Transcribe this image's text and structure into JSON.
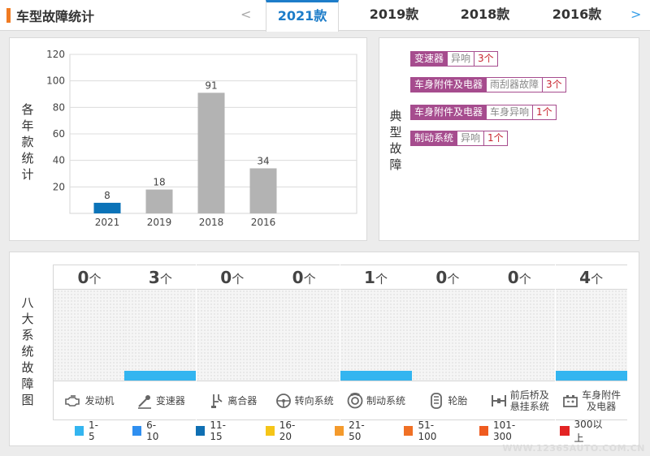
{
  "header": {
    "title": "车型故障统计",
    "prev_arrow": "<",
    "next_arrow": ">",
    "tabs": [
      {
        "label": "2021款",
        "active": true
      },
      {
        "label": "2019款",
        "active": false
      },
      {
        "label": "2018款",
        "active": false
      },
      {
        "label": "2016款",
        "active": false
      }
    ]
  },
  "yearly": {
    "side_label": "各年款统计",
    "chart_data": {
      "type": "bar",
      "categories": [
        "2021",
        "2019",
        "2018",
        "2016"
      ],
      "values": [
        8,
        18,
        91,
        34
      ],
      "bar_colors": [
        "#0b73b8",
        "#b3b3b3",
        "#b3b3b3",
        "#b3b3b3"
      ],
      "yticks": [
        20,
        40,
        60,
        80,
        100,
        120
      ],
      "ylim": [
        0,
        120
      ],
      "grid": true,
      "title": "",
      "xlabel": "",
      "ylabel": ""
    }
  },
  "typical": {
    "side_label": "典型故障",
    "items": [
      {
        "system": "变速器",
        "desc": "异响",
        "count": "3个"
      },
      {
        "system": "车身附件及电器",
        "desc": "雨刮器故障",
        "count": "3个"
      },
      {
        "system": "车身附件及电器",
        "desc": "车身异响",
        "count": "1个"
      },
      {
        "system": "制动系统",
        "desc": "异响",
        "count": "1个"
      }
    ]
  },
  "eight": {
    "side_label": "八大系统故障图",
    "unit": "个",
    "systems": [
      {
        "name": "发动机",
        "count": "0",
        "icon": "engine-icon",
        "bar_level": 0
      },
      {
        "name": "变速器",
        "count": "3",
        "icon": "gearshift-icon",
        "bar_level": 1
      },
      {
        "name": "离合器",
        "count": "0",
        "icon": "clutch-icon",
        "bar_level": 0
      },
      {
        "name": "转向系统",
        "count": "0",
        "icon": "steering-wheel-icon",
        "bar_level": 0
      },
      {
        "name": "制动系统",
        "count": "1",
        "icon": "brake-disc-icon",
        "bar_level": 1
      },
      {
        "name": "轮胎",
        "count": "0",
        "icon": "tire-icon",
        "bar_level": 0
      },
      {
        "name": "前后桥及悬挂系统",
        "count": "0",
        "icon": "axle-icon",
        "bar_level": 0
      },
      {
        "name": "车身附件及电器",
        "count": "4",
        "icon": "car-battery-icon",
        "bar_level": 1
      }
    ],
    "legend": [
      {
        "label": "1-5",
        "color": "#33b5f0"
      },
      {
        "label": "6-10",
        "color": "#2f8ff0"
      },
      {
        "label": "11-15",
        "color": "#0f6fb3"
      },
      {
        "label": "16-20",
        "color": "#f5c518"
      },
      {
        "label": "21-50",
        "color": "#f49a2c"
      },
      {
        "label": "51-100",
        "color": "#f07025"
      },
      {
        "label": "101-300",
        "color": "#ef5b1f"
      },
      {
        "label": "300以上",
        "color": "#e32424"
      }
    ]
  },
  "watermark": "WWW.12365AUTO.COM.CN",
  "colors": {
    "accent": "#1d7dc9",
    "title_bar": "#f07b22",
    "fault_tag": "#a64c8e",
    "fault_count": "#c8242e"
  }
}
